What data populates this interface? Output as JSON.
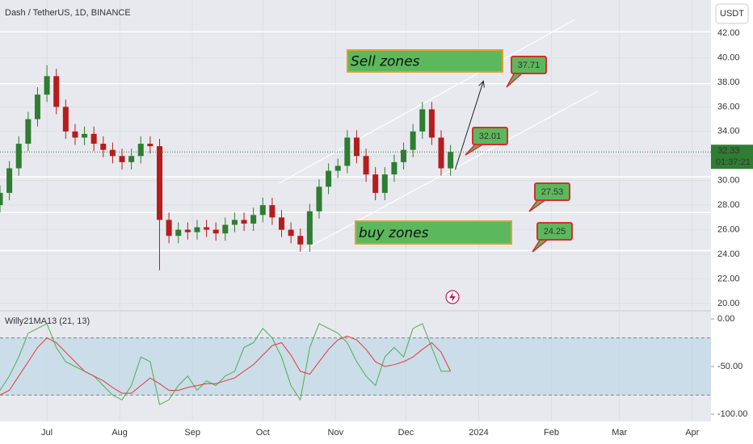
{
  "chart_data": [
    {
      "type": "candlestick",
      "title": "Dash / TetherUS, 1D, BINANCE",
      "y_unit": "USDT",
      "x": [
        -20,
        -16,
        -12,
        -8,
        -4,
        0,
        4,
        8,
        12,
        16,
        20,
        24,
        28,
        32,
        36,
        40,
        44,
        48,
        52,
        56,
        60,
        64,
        68,
        72,
        76,
        80,
        84,
        88,
        92,
        96,
        100,
        104,
        108,
        112,
        116,
        120,
        124,
        128,
        132,
        136,
        140,
        144,
        148,
        152,
        156,
        160,
        164,
        168,
        172
      ],
      "open": [
        28,
        29,
        31,
        33,
        35,
        37,
        38.5,
        36,
        34,
        33.5,
        33.8,
        33,
        32.5,
        32,
        31.5,
        32,
        33,
        32.8,
        26.8,
        25.5,
        26,
        25.8,
        26.2,
        26,
        25.7,
        26.4,
        26.8,
        26.5,
        27.2,
        28,
        27,
        26,
        25.5,
        24.8,
        27.5,
        29.5,
        30.8,
        31.2,
        33.5,
        32,
        30.5,
        29,
        30.5,
        31.5,
        32.5,
        34,
        35.8,
        33.5,
        31
      ],
      "high": [
        29.6,
        31.6,
        33.6,
        35.6,
        37.6,
        39.4,
        39.1,
        36.6,
        34.6,
        34.4,
        34.4,
        33.6,
        33.1,
        32.6,
        32.6,
        33.6,
        33.6,
        33.4,
        27.4,
        26.6,
        26.6,
        26.8,
        26.8,
        26.6,
        27,
        27.4,
        27.4,
        27.8,
        28.6,
        28.6,
        27.6,
        26.6,
        26.1,
        28.1,
        30.1,
        31.4,
        31.8,
        34.1,
        34.1,
        32.6,
        31.1,
        31.1,
        32.1,
        33.1,
        34.6,
        36.4,
        36.4,
        34.1,
        32.9
      ],
      "low": [
        27.4,
        28.4,
        30.4,
        32.4,
        34.4,
        36.4,
        35.4,
        33.4,
        32.9,
        32.9,
        32.4,
        31.9,
        31.4,
        30.9,
        30.9,
        31.4,
        32.2,
        22.7,
        24.9,
        24.9,
        25.2,
        25.2,
        25.4,
        25.1,
        25.1,
        25.8,
        25.9,
        25.9,
        26.6,
        26.4,
        25.4,
        24.9,
        24.2,
        24.2,
        26.9,
        28.9,
        30.2,
        30.6,
        31.4,
        29.9,
        28.4,
        28.4,
        29.9,
        30.9,
        31.9,
        33.4,
        32.9,
        30.4,
        30.4
      ],
      "close": [
        29,
        31,
        33,
        35,
        37,
        38.5,
        36,
        34,
        33.5,
        33.8,
        33,
        32.5,
        32,
        31.5,
        32,
        33,
        32.8,
        26.8,
        25.5,
        26,
        25.8,
        26.2,
        26,
        25.7,
        26.4,
        26.8,
        26.5,
        27.2,
        28,
        27,
        26,
        25.5,
        24.8,
        27.5,
        29.5,
        30.8,
        31.2,
        33.5,
        32,
        30.5,
        29,
        30.5,
        31.5,
        32.5,
        34,
        35.8,
        33.5,
        31,
        32.33
      ],
      "up_color": "#2e7d32",
      "down_color": "#b71c1c",
      "xlim": [
        -20,
        283
      ],
      "xticks": [
        {
          "value": 0,
          "label": "Jul"
        },
        {
          "value": 31,
          "label": "Aug"
        },
        {
          "value": 62,
          "label": "Sep"
        },
        {
          "value": 92,
          "label": "Oct"
        },
        {
          "value": 123,
          "label": "Nov"
        },
        {
          "value": 153,
          "label": "Dec"
        },
        {
          "value": 184,
          "label": "2024"
        },
        {
          "value": 215,
          "label": "Feb"
        },
        {
          "value": 244,
          "label": "Mar"
        },
        {
          "value": 275,
          "label": "Apr"
        }
      ],
      "ylim": [
        19.4,
        44.7
      ],
      "yticks": [
        {
          "value": 42,
          "label": "42.00"
        },
        {
          "value": 40,
          "label": "40.00"
        },
        {
          "value": 38,
          "label": "38.00"
        },
        {
          "value": 36,
          "label": "36.00"
        },
        {
          "value": 34,
          "label": "34.00"
        },
        {
          "value": 32,
          "label": "32.00"
        },
        {
          "value": 30,
          "label": "30.00"
        },
        {
          "value": 28,
          "label": "28.00"
        },
        {
          "value": 26,
          "label": "26.00"
        },
        {
          "value": 24,
          "label": "24.00"
        },
        {
          "value": 22,
          "label": "22.00"
        },
        {
          "value": 20,
          "label": "20.00"
        }
      ],
      "grid": true,
      "hlines": [
        42.1,
        37.9,
        30.3,
        27.4,
        24.3
      ],
      "trendlines": [
        {
          "x": [
            99,
            225
          ],
          "y": [
            29.8,
            43.1
          ]
        },
        {
          "x": [
            108,
            235
          ],
          "y": [
            24.2,
            37.3
          ]
        }
      ],
      "arrow": {
        "x": [
          174,
          186
        ],
        "y": [
          30.9,
          38.1
        ]
      },
      "last_price": {
        "value": 32.33,
        "label": "32.33"
      },
      "countdown": "01:37:21",
      "zones": [
        "Sell zones",
        "buy zones"
      ],
      "callouts": [
        "37.71",
        "32.01",
        "27.53",
        "24.25"
      ]
    },
    {
      "type": "line",
      "title": "Willy21MA13 (21, 13)",
      "x": [
        -20,
        -16,
        -12,
        -8,
        -4,
        0,
        4,
        8,
        12,
        16,
        20,
        24,
        28,
        32,
        36,
        40,
        44,
        48,
        52,
        56,
        60,
        64,
        68,
        72,
        76,
        80,
        84,
        88,
        92,
        96,
        100,
        104,
        108,
        112,
        116,
        120,
        124,
        128,
        132,
        136,
        140,
        144,
        148,
        152,
        156,
        160,
        164,
        168,
        172
      ],
      "series": [
        {
          "color": "#4caf50",
          "values": [
            -75,
            -60,
            -40,
            -15,
            -10,
            -5,
            -30,
            -45,
            -50,
            -55,
            -60,
            -70,
            -80,
            -85,
            -70,
            -40,
            -45,
            -90,
            -85,
            -70,
            -60,
            -75,
            -65,
            -70,
            -60,
            -55,
            -30,
            -25,
            -10,
            -20,
            -40,
            -70,
            -85,
            -30,
            -5,
            -10,
            -15,
            -25,
            -45,
            -60,
            -70,
            -40,
            -30,
            -40,
            -10,
            -5,
            -30,
            -55,
            -55
          ]
        },
        {
          "color": "#e53935",
          "values": [
            -80,
            -75,
            -60,
            -45,
            -30,
            -20,
            -25,
            -35,
            -45,
            -55,
            -60,
            -65,
            -72,
            -78,
            -78,
            -70,
            -62,
            -68,
            -75,
            -75,
            -72,
            -70,
            -68,
            -68,
            -65,
            -62,
            -55,
            -48,
            -38,
            -28,
            -25,
            -38,
            -55,
            -58,
            -45,
            -32,
            -22,
            -18,
            -22,
            -32,
            -45,
            -50,
            -48,
            -45,
            -40,
            -32,
            -25,
            -35,
            -55
          ]
        }
      ],
      "ylim": [
        -107.6,
        8.5
      ],
      "yticks": [
        {
          "value": 0,
          "label": "0.00"
        },
        {
          "value": -50,
          "label": "-50.00"
        },
        {
          "value": -100,
          "label": "-100.00"
        }
      ],
      "bands": [
        -20,
        -80
      ]
    }
  ]
}
